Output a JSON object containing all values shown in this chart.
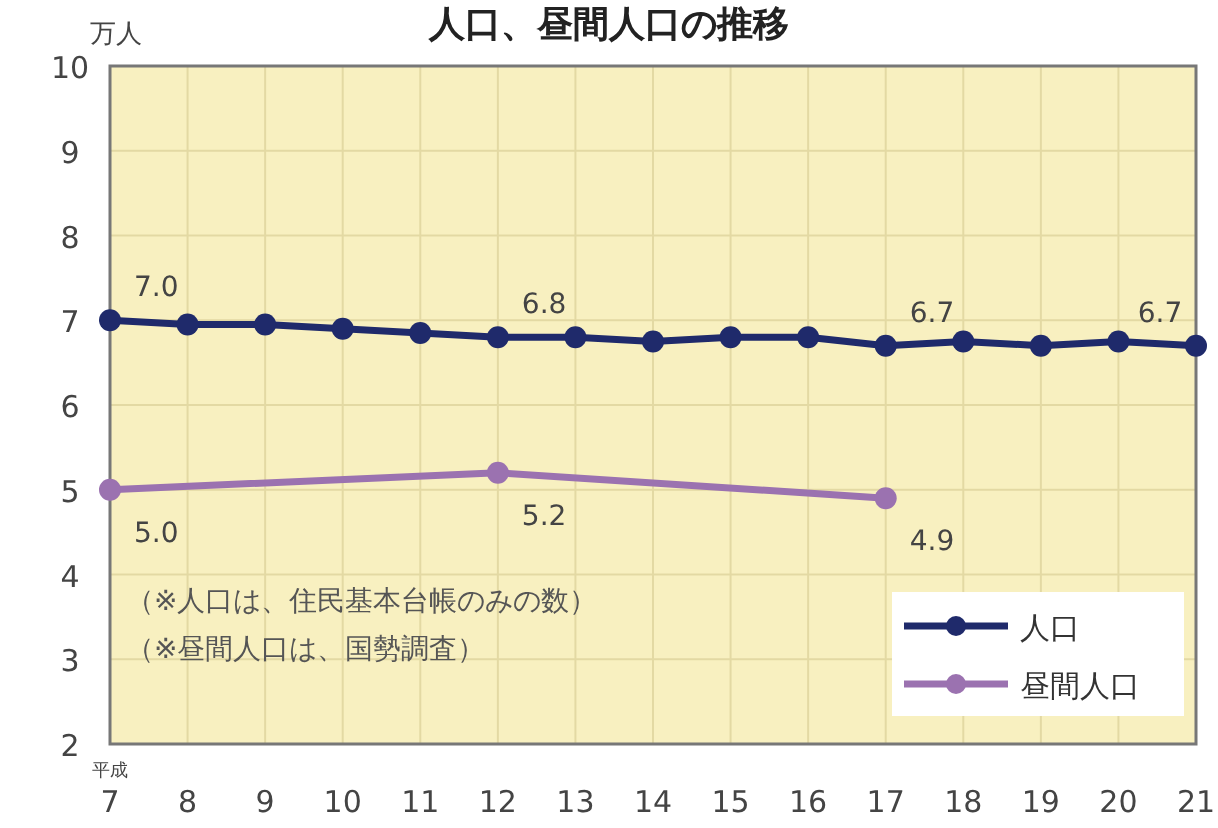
{
  "chart_data": {
    "type": "line",
    "title": "人口、昼間人口の推移",
    "ylabel": "万人",
    "xlabel": "平成",
    "categories": [
      "7",
      "8",
      "9",
      "10",
      "11",
      "12",
      "13",
      "14",
      "15",
      "16",
      "17",
      "18",
      "19",
      "20",
      "21"
    ],
    "series": [
      {
        "name": "人口",
        "color": "#1f2a6b",
        "values": [
          7.0,
          6.95,
          6.95,
          6.9,
          6.85,
          6.8,
          6.8,
          6.75,
          6.8,
          6.8,
          6.7,
          6.75,
          6.7,
          6.75,
          6.7
        ],
        "value_labels": [
          "7.0",
          null,
          null,
          null,
          null,
          "6.8",
          null,
          null,
          null,
          null,
          "6.7",
          null,
          null,
          null,
          "6.7"
        ]
      },
      {
        "name": "昼間人口",
        "color": "#9b72b0",
        "values": [
          5.0,
          null,
          null,
          null,
          null,
          5.2,
          null,
          null,
          null,
          null,
          4.9,
          null,
          null,
          null,
          null
        ],
        "value_labels": [
          "5.0",
          null,
          null,
          null,
          null,
          "5.2",
          null,
          null,
          null,
          null,
          "4.9",
          null,
          null,
          null,
          null
        ]
      }
    ],
    "ylim": [
      2,
      10
    ],
    "yticks": [
      2,
      3,
      4,
      5,
      6,
      7,
      8,
      9,
      10
    ],
    "grid": true,
    "legend": "bottom right",
    "marker": "circle",
    "line_style": "solid",
    "annotations": [
      "（※人口は、住民基本台帳のみの数）",
      "（※昼間人口は、国勢調査）"
    ]
  }
}
